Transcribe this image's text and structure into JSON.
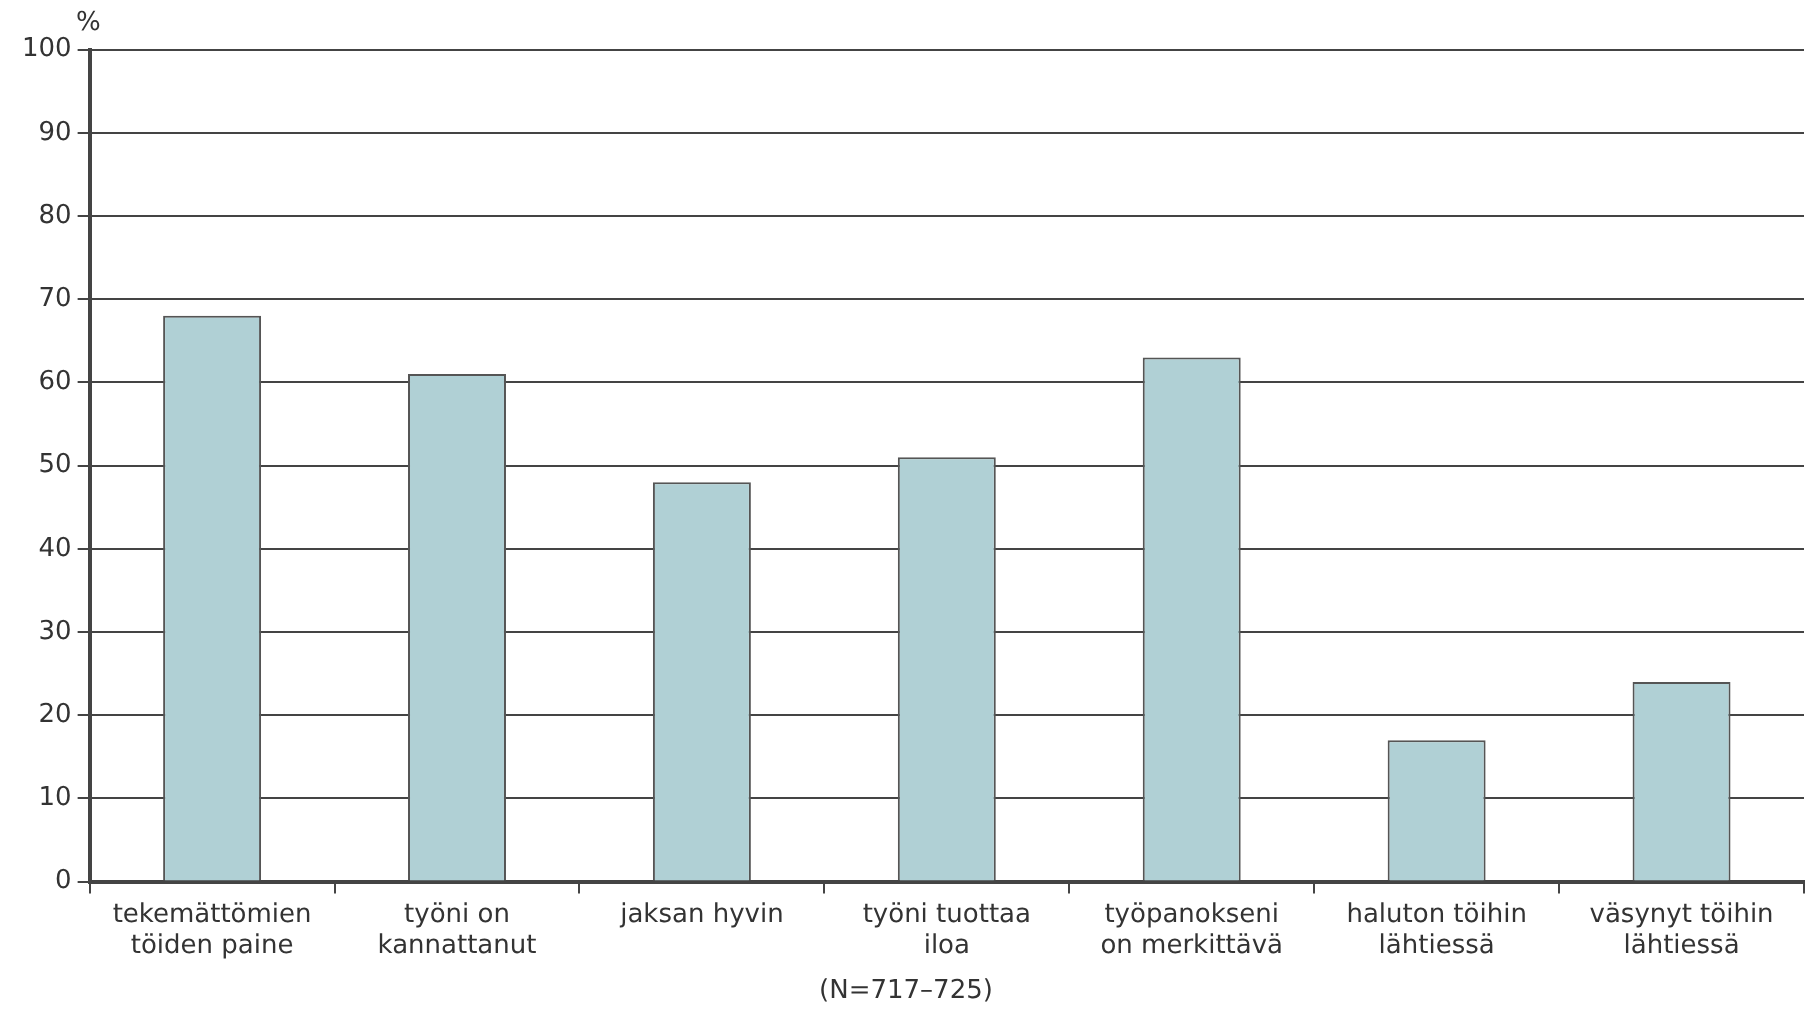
{
  "chart_data": {
    "type": "bar",
    "ylabel": "%",
    "categories": [
      "tekemättömien\ntöiden paine",
      "työni on\nkannattanut",
      "jaksan hyvin",
      "työni tuottaa\niloa",
      "työpanokseni\non merkittävä",
      "haluton töihin\nlähtiessä",
      "väsynyt töihin\nlähtiessä"
    ],
    "values": [
      68,
      61,
      48,
      51,
      63,
      17,
      24
    ],
    "color": "#b0d0d5",
    "ylim": [
      0,
      100
    ],
    "yticks": [
      0,
      10,
      20,
      30,
      40,
      50,
      60,
      70,
      80,
      90,
      100
    ],
    "grid": "y",
    "annotations": [
      "(N=717–725)"
    ]
  }
}
